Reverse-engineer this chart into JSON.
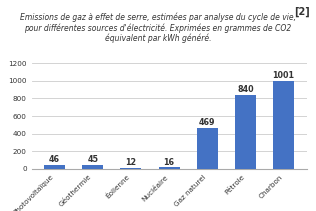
{
  "categories": [
    "Photovoltaïque",
    "Géothermie",
    "Éolienne",
    "Nucléaire",
    "Gaz naturel",
    "Pétrole",
    "Charbon"
  ],
  "values": [
    46,
    45,
    12,
    16,
    469,
    840,
    1001
  ],
  "bar_color": "#4472c4",
  "title_line1": "Emissions de gaz à effet de serre, estimées par analyse du cycle de vie,",
  "title_line2": "pour différentes sources d'électricité. Exprimées en grammes de CO2",
  "title_line3": "équivalent par kWh généré.",
  "ref_label": "[2]",
  "ylim": [
    0,
    1200
  ],
  "yticks": [
    0,
    200,
    400,
    600,
    800,
    1000,
    1200
  ],
  "title_fontsize": 5.5,
  "tick_fontsize": 5.2,
  "value_fontsize": 5.8,
  "ref_fontsize": 7.0,
  "background_color": "#ffffff",
  "footer_color": "#4a7c59",
  "grid_color": "#cccccc"
}
